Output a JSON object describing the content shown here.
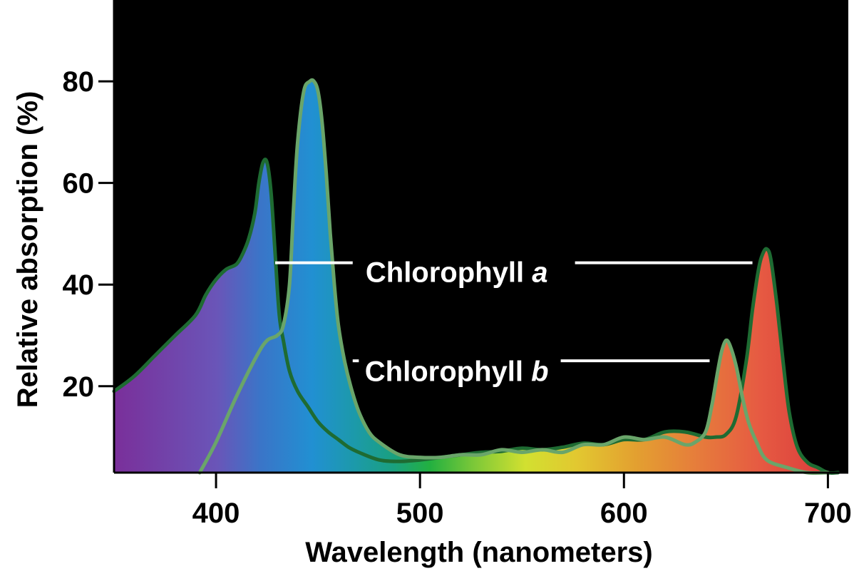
{
  "chart_data": {
    "type": "area",
    "xlabel": "Wavelength (nanometers)",
    "ylabel": "Relative absorption (%)",
    "xlim": [
      350,
      710
    ],
    "ylim": [
      3,
      96
    ],
    "x_ticks": [
      400,
      500,
      600,
      700
    ],
    "y_ticks": [
      20,
      40,
      60,
      80
    ],
    "grid": false,
    "background": "#000000",
    "fill": "visible-spectrum gradient (violet to red)",
    "series": [
      {
        "name": "Chlorophyll a",
        "color": "#1e6b32",
        "x": [
          350,
          360,
          370,
          380,
          390,
          395,
          400,
          405,
          410,
          413,
          416,
          419,
          421,
          423,
          425,
          427,
          429,
          431,
          433,
          436,
          440,
          445,
          450,
          455,
          460,
          465,
          470,
          480,
          490,
          500,
          510,
          520,
          530,
          540,
          550,
          560,
          570,
          580,
          590,
          600,
          610,
          620,
          630,
          640,
          645,
          650,
          655,
          660,
          663,
          666,
          668,
          670,
          672,
          675,
          678,
          681,
          685,
          690,
          695,
          700,
          705
        ],
        "y": [
          19,
          22,
          26,
          30,
          34,
          38,
          41,
          43,
          44,
          46,
          49,
          54,
          60,
          64,
          64,
          58,
          46,
          34,
          29,
          23,
          19,
          16,
          13,
          11,
          9.5,
          8,
          7,
          5.5,
          5.2,
          5.5,
          6,
          6.5,
          7,
          7.2,
          7.8,
          7.5,
          8,
          8.8,
          8.5,
          9.5,
          9.5,
          11,
          11,
          10,
          10,
          10.5,
          14,
          25,
          35,
          43,
          46,
          47,
          45,
          36,
          25,
          15,
          8,
          5,
          4,
          3,
          3
        ]
      },
      {
        "name": "Chlorophyll b",
        "color": "#6aa56a",
        "x": [
          392,
          400,
          410,
          420,
          425,
          430,
          433,
          436,
          438,
          440,
          443,
          446,
          448,
          450,
          452,
          454,
          456,
          458,
          460,
          463,
          466,
          470,
          475,
          480,
          490,
          500,
          510,
          520,
          530,
          540,
          550,
          560,
          570,
          580,
          590,
          600,
          610,
          620,
          630,
          635,
          640,
          643,
          646,
          648,
          650,
          652,
          655,
          658,
          661,
          665,
          670,
          680,
          690,
          700
        ],
        "y": [
          3,
          9,
          18,
          26,
          29,
          30,
          32,
          40,
          55,
          68,
          78,
          80,
          80,
          78,
          72,
          62,
          50,
          40,
          32,
          25,
          20,
          15,
          11,
          9,
          6.5,
          6,
          6,
          6.5,
          6.5,
          7.5,
          7,
          7.5,
          7,
          8.5,
          8.5,
          10,
          9.5,
          10,
          8.5,
          9,
          11,
          16,
          23,
          27,
          29,
          28,
          24,
          18,
          13,
          9,
          5.5,
          4,
          3,
          3
        ]
      }
    ],
    "annotations": [
      {
        "text": "Chlorophyll ",
        "italic": "a",
        "series": "Chlorophyll a"
      },
      {
        "text": "Chlorophyll ",
        "italic": "b",
        "series": "Chlorophyll b"
      }
    ]
  }
}
